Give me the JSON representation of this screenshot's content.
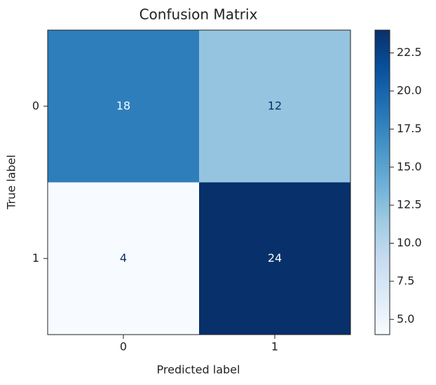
{
  "chart_data": {
    "type": "heatmap",
    "title": "Confusion Matrix",
    "x_label": "Predicted label",
    "y_label": "True label",
    "x_categories": [
      "0",
      "1"
    ],
    "y_categories": [
      "0",
      "1"
    ],
    "values": [
      [
        18,
        12
      ],
      [
        4,
        24
      ]
    ],
    "colormap": [
      "#f7fbff",
      "#deebf7",
      "#c6dbef",
      "#9ecae1",
      "#6baed6",
      "#4292c6",
      "#2171b5",
      "#08519c",
      "#08306b"
    ],
    "text_colors": [
      "#08306b",
      "#f7fbff"
    ],
    "clim": [
      4,
      24
    ],
    "cticks": [
      {
        "value": 5,
        "label": "5.0"
      },
      7.5,
      {
        "value": 10,
        "label": "10.0"
      },
      12.5,
      {
        "value": 15,
        "label": "15.0"
      },
      17.5,
      {
        "value": 20,
        "label": "20.0"
      },
      22.5
    ]
  }
}
